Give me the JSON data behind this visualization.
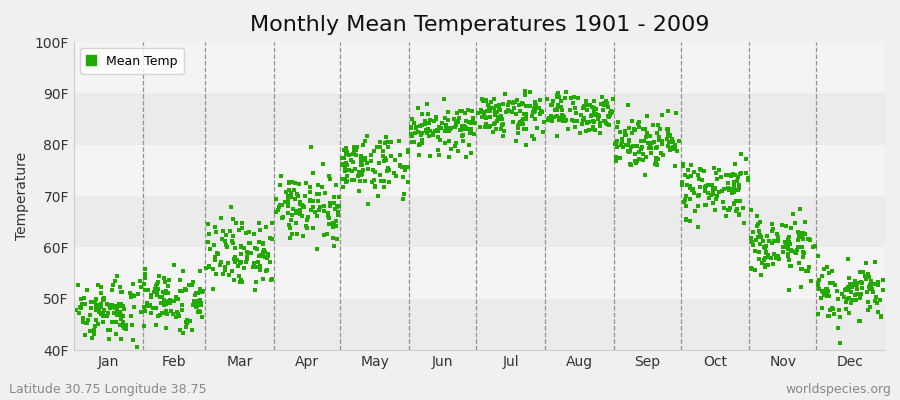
{
  "title": "Monthly Mean Temperatures 1901 - 2009",
  "ylabel": "Temperature",
  "ylim": [
    40,
    100
  ],
  "yticks": [
    40,
    50,
    60,
    70,
    80,
    90,
    100
  ],
  "ytick_labels": [
    "40F",
    "50F",
    "60F",
    "70F",
    "80F",
    "90F",
    "100F"
  ],
  "month_labels": [
    "Jan",
    "Feb",
    "Mar",
    "Apr",
    "May",
    "Jun",
    "Jul",
    "Aug",
    "Sep",
    "Oct",
    "Nov",
    "Dec"
  ],
  "month_days": [
    31,
    28,
    31,
    30,
    31,
    30,
    31,
    31,
    30,
    31,
    30,
    31
  ],
  "monthly_means": [
    48,
    50,
    59,
    68,
    76,
    83,
    86,
    86,
    81,
    71,
    60,
    51
  ],
  "monthly_stds": [
    3.0,
    3.0,
    3.5,
    3.2,
    3.0,
    2.2,
    2.0,
    2.0,
    2.5,
    3.0,
    3.0,
    3.0
  ],
  "n_years": 109,
  "dot_color": "#22aa00",
  "marker": "s",
  "marker_size": 3,
  "bg_color": "#f0f0f0",
  "plot_bg_color": "#f8f8f8",
  "band_colors": [
    "#ebebeb",
    "#f4f4f4"
  ],
  "legend_label": "Mean Temp",
  "subtitle_left": "Latitude 30.75 Longitude 38.75",
  "subtitle_right": "worldspecies.org",
  "title_fontsize": 16,
  "axis_label_fontsize": 10,
  "tick_fontsize": 10,
  "subtitle_fontsize": 9
}
